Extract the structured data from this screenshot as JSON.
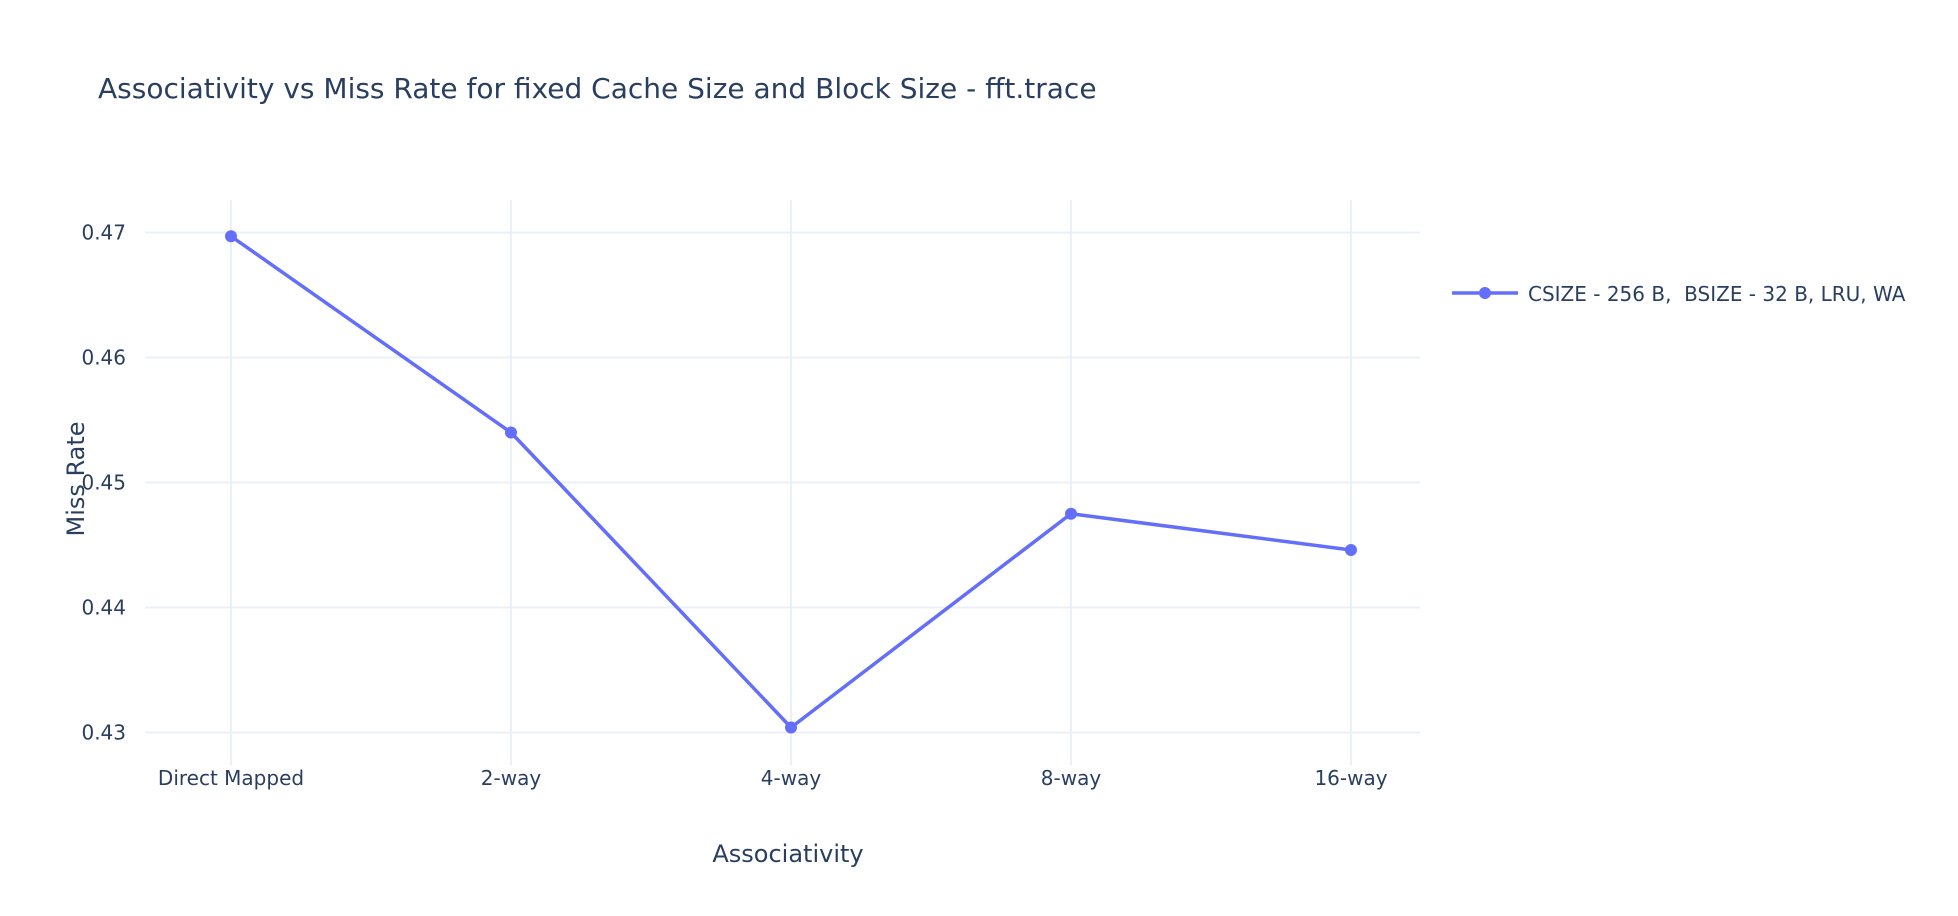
{
  "chart_data": {
    "type": "line",
    "title": "Associativity vs Miss Rate for fixed Cache Size and Block Size - fft.trace",
    "xlabel": "Associativity",
    "ylabel": "Miss Rate",
    "categories": [
      "Direct Mapped",
      "2-way",
      "4-way",
      "8-way",
      "16-way"
    ],
    "yticks": [
      "0.43",
      "0.44",
      "0.45",
      "0.46",
      "0.47"
    ],
    "ylim": [
      0.4274,
      0.4726
    ],
    "grid": true,
    "legend_position": "top-right",
    "series": [
      {
        "name": "CSIZE - 256 B,  BSIZE - 32 B, LRU, WA",
        "color": "#636efa",
        "values": [
          0.4697,
          0.454,
          0.4304,
          0.4475,
          0.4446
        ]
      }
    ]
  }
}
